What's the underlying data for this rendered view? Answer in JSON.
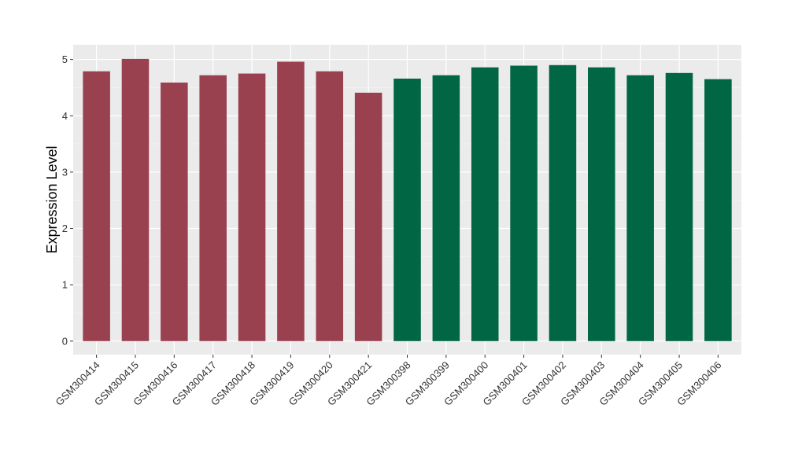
{
  "chart_data": {
    "type": "bar",
    "y_label": "Expression Level",
    "categories": [
      "GSM300414",
      "GSM300415",
      "GSM300416",
      "GSM300417",
      "GSM300418",
      "GSM300419",
      "GSM300420",
      "GSM300421",
      "GSM300398",
      "GSM300399",
      "GSM300400",
      "GSM300401",
      "GSM300402",
      "GSM300403",
      "GSM300404",
      "GSM300405",
      "GSM300406"
    ],
    "values": [
      4.79,
      5.01,
      4.59,
      4.72,
      4.75,
      4.96,
      4.79,
      4.41,
      4.66,
      4.72,
      4.86,
      4.89,
      4.9,
      4.86,
      4.72,
      4.76,
      4.65
    ],
    "colors": [
      "#9a4150",
      "#9a4150",
      "#9a4150",
      "#9a4150",
      "#9a4150",
      "#9a4150",
      "#9a4150",
      "#9a4150",
      "#006644",
      "#006644",
      "#006644",
      "#006644",
      "#006644",
      "#006644",
      "#006644",
      "#006644",
      "#006644"
    ],
    "ylim": [
      -0.24,
      5.26
    ],
    "yticks": [
      0,
      1,
      2,
      3,
      4,
      5
    ],
    "grid": true
  }
}
